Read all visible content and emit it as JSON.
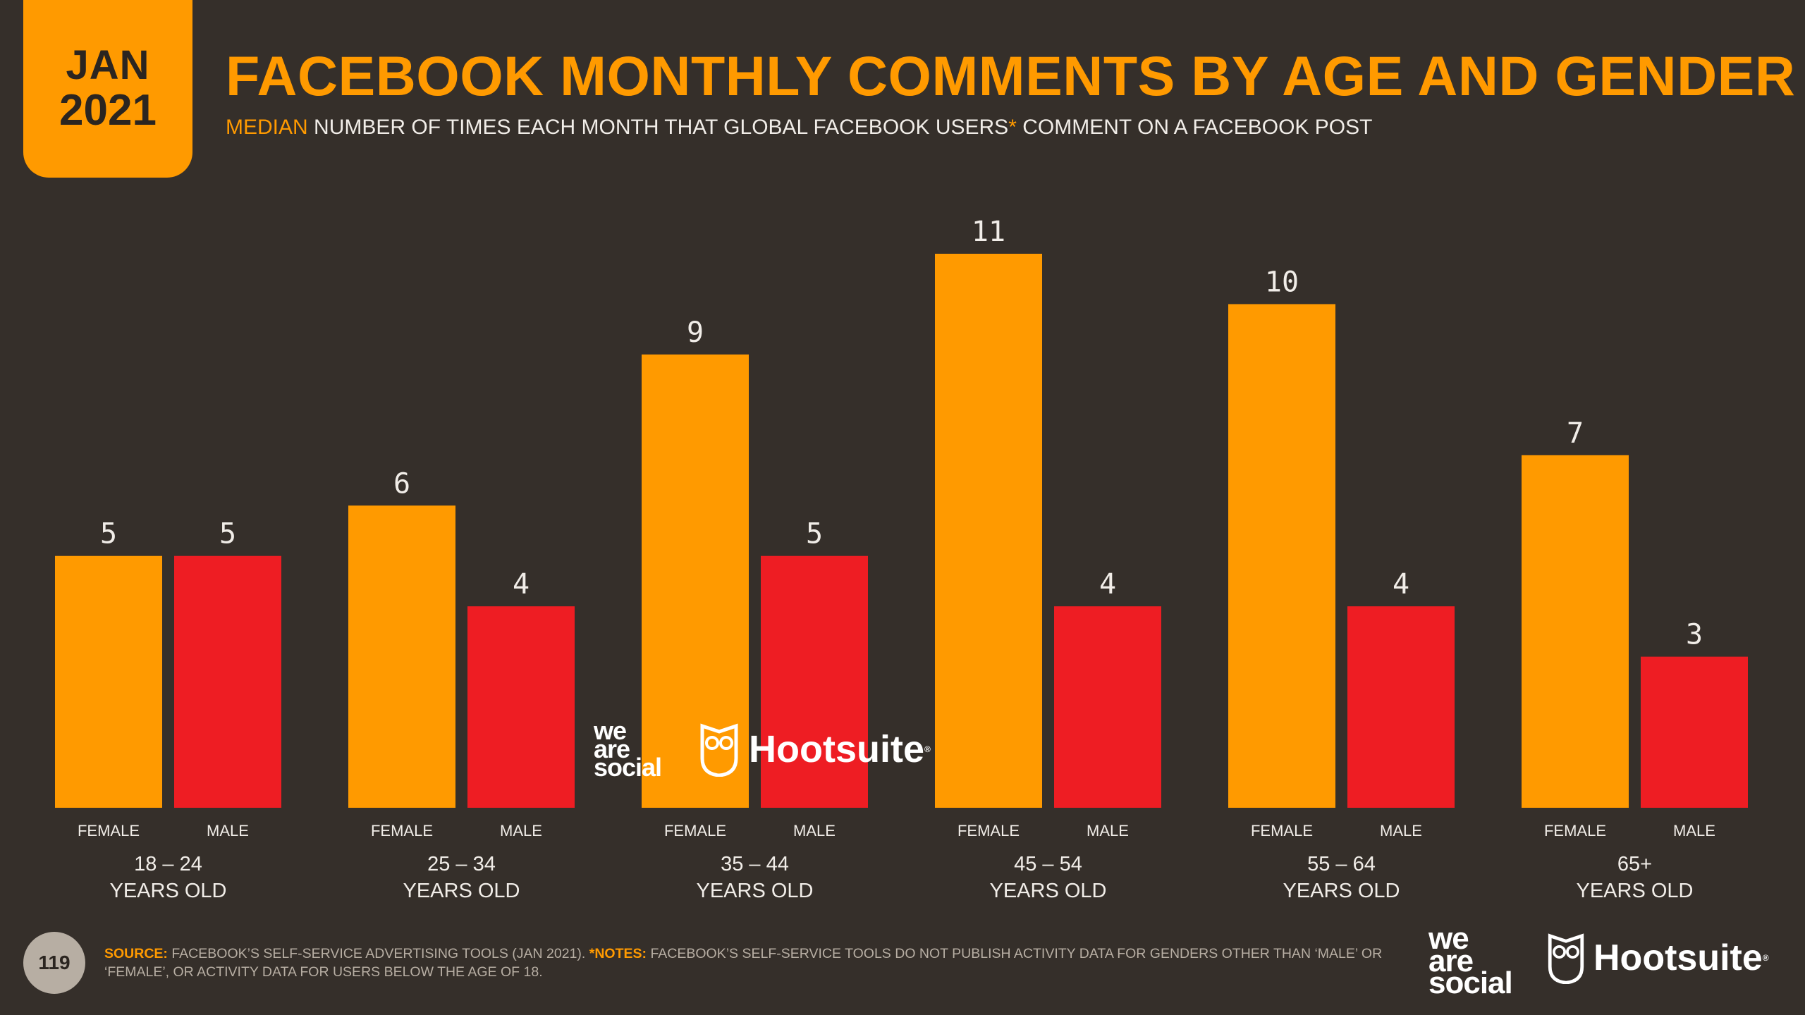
{
  "badge": {
    "month": "JAN",
    "year": "2021"
  },
  "title": "FACEBOOK MONTHLY COMMENTS BY AGE AND GENDER",
  "subtitle": {
    "highlight": "MEDIAN",
    "text1": " NUMBER OF TIMES EACH MONTH THAT GLOBAL FACEBOOK USERS",
    "asterisk": "*",
    "text2": " COMMENT ON A FACEBOOK POST"
  },
  "colors": {
    "female": "#ff9a00",
    "male": "#ee1d23",
    "background": "#352f2a",
    "accent": "#ff9a00"
  },
  "chart_data": {
    "type": "bar",
    "title": "FACEBOOK MONTHLY COMMENTS BY AGE AND GENDER",
    "ylabel": "",
    "ylim": [
      0,
      11
    ],
    "grid": false,
    "categories": [
      {
        "line1": "18 – 24",
        "line2": "YEARS OLD"
      },
      {
        "line1": "25 – 34",
        "line2": "YEARS OLD"
      },
      {
        "line1": "35 – 44",
        "line2": "YEARS OLD"
      },
      {
        "line1": "45 – 54",
        "line2": "YEARS OLD"
      },
      {
        "line1": "55 – 64",
        "line2": "YEARS OLD"
      },
      {
        "line1": "65+",
        "line2": "YEARS OLD"
      }
    ],
    "series": [
      {
        "name": "FEMALE",
        "color": "#ff9a00",
        "values": [
          5,
          6,
          9,
          11,
          10,
          7
        ]
      },
      {
        "name": "MALE",
        "color": "#ee1d23",
        "values": [
          5,
          4,
          5,
          4,
          4,
          3
        ]
      }
    ]
  },
  "page_number": "119",
  "footnote": {
    "source_label": "SOURCE:",
    "source_text": " FACEBOOK’S SELF-SERVICE ADVERTISING TOOLS (JAN 2021). ",
    "notes_label": "*NOTES:",
    "notes_text": " FACEBOOK’S SELF-SERVICE TOOLS DO NOT PUBLISH ACTIVITY DATA FOR GENDERS OTHER THAN ‘MALE’ OR ‘FEMALE’, OR ACTIVITY DATA FOR USERS BELOW THE AGE OF 18."
  },
  "branding": {
    "was_line1": "we",
    "was_line2": "are",
    "was_line3": "social",
    "hootsuite": "Hootsuite",
    "registered": "®"
  }
}
